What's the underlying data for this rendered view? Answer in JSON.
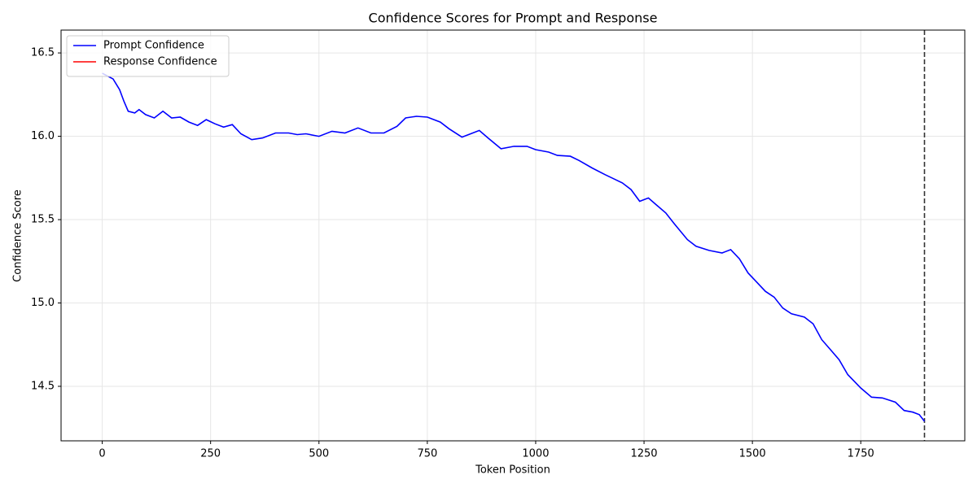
{
  "chart_data": {
    "type": "line",
    "title": "Confidence Scores for Prompt and Response",
    "x_label": "Token Position",
    "y_label": "Confidence Score",
    "series": [
      {
        "name": "Prompt Confidence",
        "color": "#0000ff",
        "x": [
          0,
          25,
          40,
          50,
          60,
          75,
          85,
          100,
          120,
          140,
          160,
          180,
          200,
          220,
          240,
          260,
          280,
          300,
          320,
          345,
          370,
          400,
          430,
          450,
          470,
          500,
          530,
          560,
          590,
          620,
          650,
          680,
          700,
          725,
          750,
          780,
          800,
          830,
          850,
          870,
          890,
          920,
          950,
          980,
          1000,
          1030,
          1050,
          1080,
          1100,
          1130,
          1160,
          1180,
          1200,
          1220,
          1240,
          1260,
          1280,
          1300,
          1320,
          1350,
          1370,
          1400,
          1430,
          1450,
          1470,
          1490,
          1510,
          1530,
          1550,
          1570,
          1590,
          1620,
          1640,
          1660,
          1680,
          1700,
          1720,
          1750,
          1775,
          1800,
          1830,
          1850,
          1870,
          1885,
          1897
        ],
        "values": [
          16.378,
          16.344,
          16.28,
          16.21,
          16.15,
          16.14,
          16.16,
          16.13,
          16.11,
          16.15,
          16.11,
          16.115,
          16.085,
          16.065,
          16.1,
          16.075,
          16.055,
          16.07,
          16.015,
          15.98,
          15.99,
          16.02,
          16.02,
          16.01,
          16.015,
          16.0,
          16.03,
          16.02,
          16.05,
          16.02,
          16.02,
          16.06,
          16.11,
          16.12,
          16.115,
          16.085,
          16.045,
          15.995,
          16.015,
          16.035,
          15.99,
          15.925,
          15.94,
          15.94,
          15.92,
          15.905,
          15.885,
          15.88,
          15.855,
          15.81,
          15.77,
          15.745,
          15.72,
          15.68,
          15.61,
          15.63,
          15.585,
          15.54,
          15.475,
          15.38,
          15.34,
          15.315,
          15.3,
          15.32,
          15.265,
          15.18,
          15.125,
          15.07,
          15.035,
          14.97,
          14.935,
          14.915,
          14.875,
          14.78,
          14.72,
          14.66,
          14.57,
          14.49,
          14.435,
          14.43,
          14.405,
          14.355,
          14.345,
          14.33,
          14.29
        ]
      },
      {
        "name": "Response Confidence",
        "color": "#ff0000",
        "x": [],
        "values": []
      }
    ],
    "vlines": [
      {
        "x": 1897,
        "color": "#333333",
        "style": "dashed"
      }
    ],
    "xlim": [
      -95,
      1990
    ],
    "xticks": [
      0,
      250,
      500,
      750,
      1000,
      1250,
      1500,
      1750
    ],
    "ylim": [
      14.173,
      16.637
    ],
    "yticks": [
      14.5,
      {
        "value": 15,
        "label": "15.0"
      },
      15.5,
      {
        "value": 16,
        "label": "16.0"
      },
      16.5
    ],
    "grid": true,
    "legend": "upper-left"
  }
}
